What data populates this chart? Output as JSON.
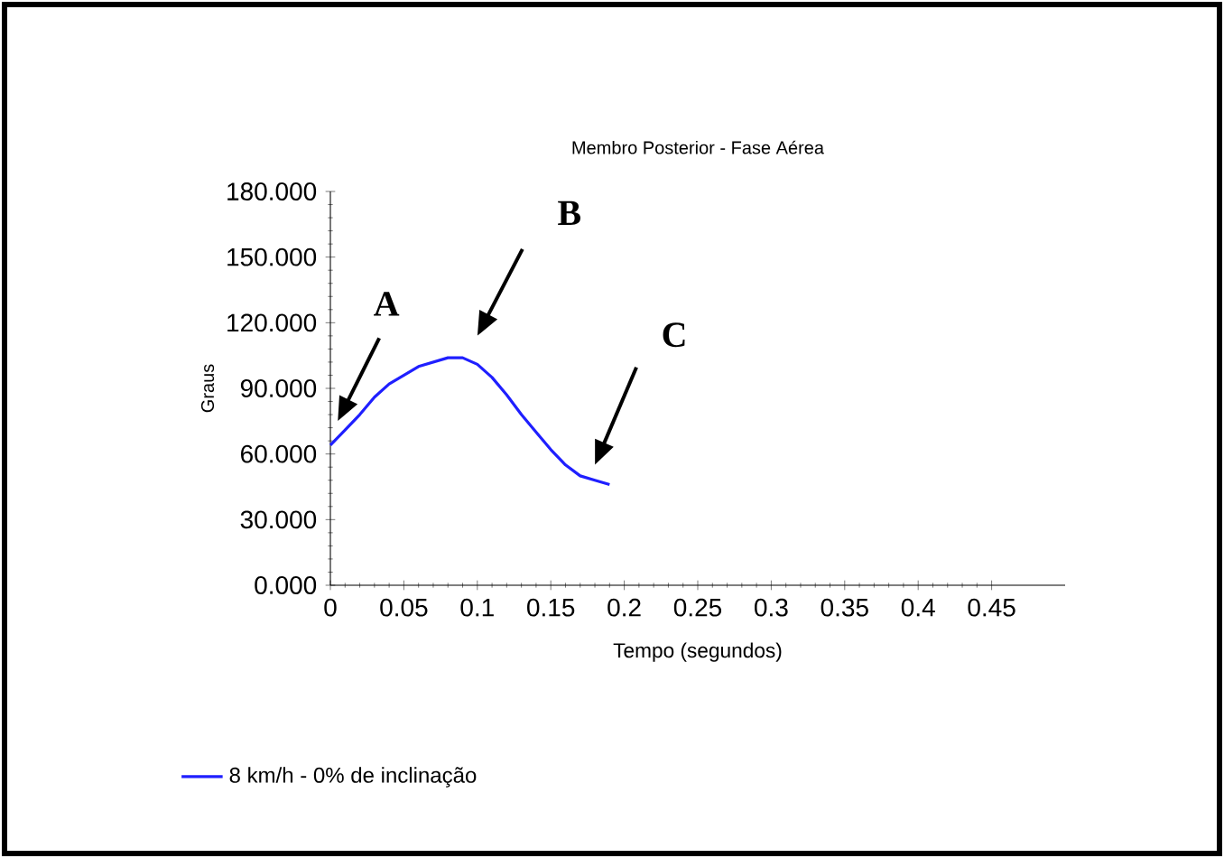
{
  "chart_data": {
    "type": "line",
    "title": "Membro Posterior - Fase Aérea",
    "xlabel": "Tempo (segundos)",
    "ylabel": "Graus",
    "x": [
      0,
      0.01,
      0.02,
      0.03,
      0.04,
      0.05,
      0.06,
      0.07,
      0.08,
      0.09,
      0.1,
      0.11,
      0.12,
      0.13,
      0.14,
      0.15,
      0.16,
      0.17,
      0.18,
      0.19
    ],
    "series": [
      {
        "name": "8 km/h - 0% de inclinação",
        "color": "#1f1fff",
        "values": [
          64,
          71,
          78,
          86,
          92,
          96,
          100,
          102,
          104,
          104,
          101,
          95,
          87,
          78,
          70,
          62,
          55,
          50,
          48,
          46
        ]
      }
    ],
    "xlim": [
      0,
      0.5
    ],
    "ylim": [
      0,
      180
    ],
    "xticks": [
      0,
      0.05,
      0.1,
      0.15,
      0.2,
      0.25,
      0.3,
      0.35,
      0.4,
      0.45
    ],
    "yticks": [
      {
        "value": 0,
        "label": "0.000"
      },
      {
        "value": 30,
        "label": "30.000"
      },
      {
        "value": 60,
        "label": "60.000"
      },
      {
        "value": 90,
        "label": "90.000"
      },
      {
        "value": 120,
        "label": "120.000"
      },
      {
        "value": 150,
        "label": "150.000"
      },
      {
        "value": 180,
        "label": "180.000"
      }
    ],
    "annotations": [
      "A",
      "B",
      "C"
    ],
    "grid": false,
    "legend": "bottom left",
    "marker": "none",
    "line_style": "solid"
  }
}
